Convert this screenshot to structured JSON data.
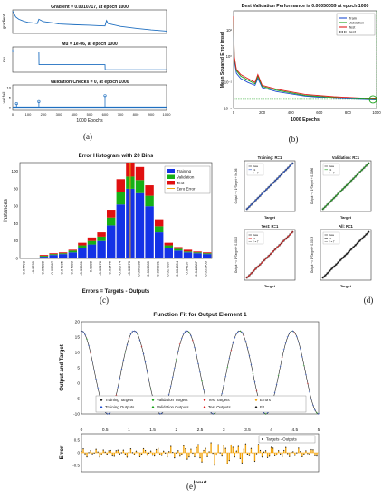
{
  "panel_labels": [
    "(a)",
    "(b)",
    "(c)",
    "(d)",
    "(e)"
  ],
  "chart_data": [
    {
      "id": "a",
      "type": "line",
      "subplots": [
        {
          "title": "Gradient = 0.0010717, at epoch 1000",
          "ylabel": "gradient",
          "x": [
            0,
            20,
            40,
            60,
            80,
            100,
            130,
            160,
            170,
            200,
            260,
            300,
            400,
            500,
            560,
            600,
            610,
            620,
            700,
            800,
            900,
            1000
          ],
          "y": [
            0.95,
            0.7,
            0.6,
            0.55,
            0.5,
            0.47,
            0.45,
            0.42,
            0.6,
            0.5,
            0.45,
            0.4,
            0.37,
            0.35,
            0.33,
            0.32,
            0.55,
            0.42,
            0.3,
            0.22,
            0.15,
            0.1
          ]
        },
        {
          "title": "Mu = 1e-06, at epoch 1000",
          "ylabel": "mu",
          "x": [
            0,
            1,
            170,
            171,
            600,
            601,
            1000
          ],
          "y": [
            0.9,
            0.8,
            0.8,
            0.3,
            0.3,
            0.1,
            0.1
          ]
        },
        {
          "title": "Validation Checks = 0, at epoch 1000",
          "ylabel": "val fail",
          "xlabel": "1000 Epochs",
          "xticks": [
            "0",
            "100",
            "200",
            "300",
            "400",
            "500",
            "600",
            "700",
            "800",
            "900",
            "1000"
          ],
          "yticks": [
            "0",
            "5",
            "10"
          ],
          "spikes": [
            {
              "x": 25,
              "y": 2
            },
            {
              "x": 170,
              "y": 3
            },
            {
              "x": 600,
              "y": 6
            }
          ]
        }
      ]
    },
    {
      "id": "b",
      "type": "line",
      "title": "Best Validation Performance is 0.00050059 at epoch 1000",
      "xlabel": "1000 Epochs",
      "ylabel": "Mean Squared Error  (mse)",
      "xlim": [
        0,
        1000
      ],
      "xticks": [
        "0",
        "200",
        "400",
        "600",
        "800",
        "1000"
      ],
      "yticks": [
        "10⁻⁴",
        "10⁻²",
        "10⁰",
        "10²"
      ],
      "legend": [
        "Train",
        "Validation",
        "Test",
        "Best"
      ],
      "colors": [
        "#1f4fd1",
        "#1aa31a",
        "#e01b1b",
        "#000000"
      ],
      "series": [
        {
          "name": "Train",
          "x": [
            0,
            5,
            20,
            50,
            100,
            150,
            170,
            200,
            300,
            500,
            700,
            1000
          ],
          "y": [
            900,
            0.5,
            0.05,
            0.02,
            0.01,
            0.006,
            0.02,
            0.004,
            0.002,
            0.0009,
            0.0006,
            0.00045
          ]
        },
        {
          "name": "Validation",
          "x": [
            0,
            5,
            20,
            50,
            100,
            150,
            170,
            200,
            300,
            500,
            700,
            1000
          ],
          "y": [
            1000,
            0.8,
            0.08,
            0.03,
            0.015,
            0.008,
            0.03,
            0.005,
            0.0025,
            0.001,
            0.0007,
            0.0005
          ]
        },
        {
          "name": "Test",
          "x": [
            0,
            5,
            20,
            50,
            100,
            150,
            170,
            200,
            300,
            500,
            700,
            1000
          ],
          "y": [
            1200,
            1.0,
            0.1,
            0.04,
            0.02,
            0.01,
            0.04,
            0.006,
            0.003,
            0.0012,
            0.0008,
            0.00055
          ]
        }
      ],
      "best": {
        "x": 1000,
        "y": 0.00050059
      }
    },
    {
      "id": "c",
      "type": "bar",
      "title": "Error Histogram with 20 Bins",
      "xlabel": "Errors = Targets - Outputs",
      "ylabel": "Instances",
      "ylim": [
        0,
        110
      ],
      "yticks": [
        "0",
        "20",
        "40",
        "60",
        "80",
        "100"
      ],
      "categories": [
        "-0.07792",
        "-0.0709",
        "-0.06388",
        "-0.05687",
        "-0.04985",
        "-0.04283",
        "-0.03581",
        "-0.0288",
        "-0.02178",
        "-0.01476",
        "-0.00774",
        "-0.00073",
        "0.006288",
        "0.013305",
        "0.020321",
        "0.027337",
        "0.034354",
        "0.04137",
        "0.048387",
        "0.055403"
      ],
      "legend": [
        "Training",
        "Validation",
        "Test",
        "Zero Error"
      ],
      "colors": [
        "#1432e6",
        "#16b016",
        "#e01010",
        "#f2a510"
      ],
      "series": [
        {
          "name": "Training",
          "values": [
            1,
            1,
            2,
            4,
            5,
            7,
            12,
            16,
            20,
            38,
            62,
            80,
            75,
            60,
            30,
            12,
            9,
            7,
            6,
            5
          ]
        },
        {
          "name": "Validation",
          "values": [
            0,
            0,
            1,
            1,
            1,
            2,
            3,
            4,
            5,
            9,
            14,
            14,
            15,
            12,
            7,
            3,
            2,
            1,
            1,
            1
          ]
        },
        {
          "name": "Test",
          "values": [
            0,
            0,
            1,
            1,
            1,
            1,
            3,
            4,
            5,
            9,
            15,
            16,
            15,
            12,
            8,
            3,
            2,
            2,
            1,
            1
          ]
        }
      ],
      "zero_error_x": -0.00073
    },
    {
      "id": "d",
      "type": "scatter",
      "subplots": [
        {
          "title": "Training: R=1",
          "ylabel": "Output ~= 1*Target + 9e-06",
          "xlabel": "Target",
          "color": "#1f4fd1",
          "legend": [
            "Data",
            "Fit",
            "Y = T"
          ]
        },
        {
          "title": "Validation: R=1",
          "ylabel": "Output ~= 1*Target + 0.0086",
          "xlabel": "Target",
          "color": "#1aa31a",
          "legend": [
            "Data",
            "Fit",
            "Y = T"
          ]
        },
        {
          "title": "Test: R=1",
          "ylabel": "Output ~= 1*Target + 0.0022",
          "xlabel": "Target",
          "color": "#e01b1b",
          "legend": [
            "Data",
            "Fit",
            "Y = T"
          ]
        },
        {
          "title": "All: R=1",
          "ylabel": "Output ~= 1*Target + 0.0013",
          "xlabel": "Target",
          "color": "#111111",
          "legend": [
            "Data",
            "Fit",
            "Y = T"
          ]
        }
      ]
    },
    {
      "id": "e",
      "type": "line",
      "title": "Function Fit for Output Element 1",
      "ylabel": "Output and Target",
      "ylim": [
        -10,
        20
      ],
      "yticks": [
        "-10",
        "-5",
        "0",
        "5",
        "10",
        "15",
        "20"
      ],
      "x_range": [
        0,
        5
      ],
      "sine": {
        "amplitude": 13.5,
        "offset": 3.5,
        "cycles": 4.5
      },
      "legend": [
        "Training Targets",
        "Validation Targets",
        "Test Targets",
        "Errors",
        "Training Outputs",
        "Validation Outputs",
        "Test Outputs",
        "Fit"
      ],
      "colors": [
        "#1f1f1f",
        "#1aa31a",
        "#e01b1b",
        "#f2a510",
        "#1f4fd1",
        "#1aa31a",
        "#e01b1b",
        "#1f1f1f"
      ],
      "error_panel": {
        "ylabel": "Error",
        "xlabel": "Input",
        "xticks": [
          "0",
          "0.5",
          "1",
          "1.5",
          "2",
          "2.5",
          "3",
          "3.5",
          "4",
          "4.5",
          "5"
        ],
        "yticks": [
          "-0.5",
          "0",
          "0.5"
        ],
        "legend": [
          "Targets - Outputs"
        ]
      }
    }
  ]
}
